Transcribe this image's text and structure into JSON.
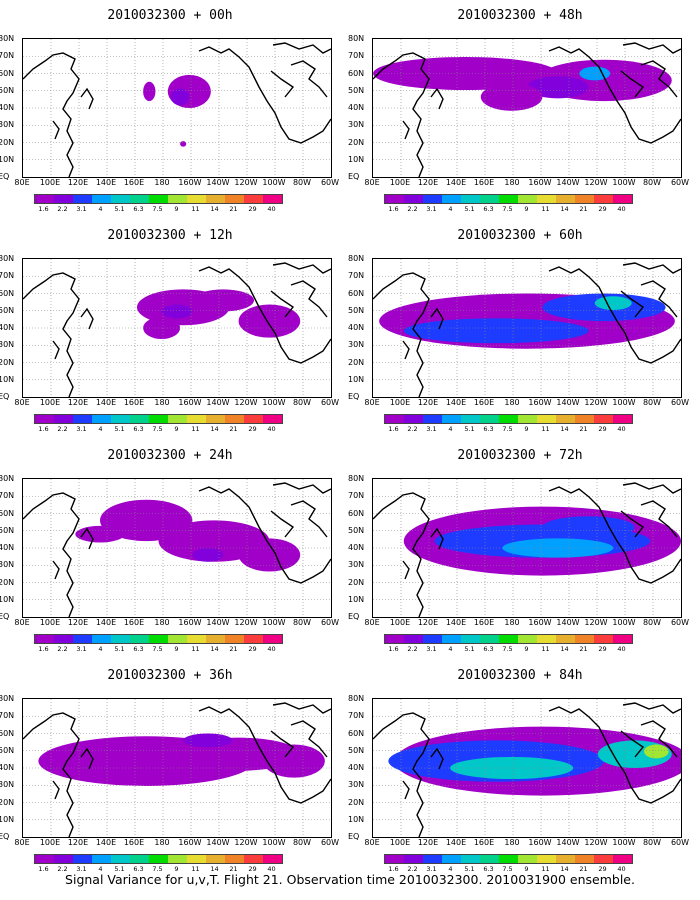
{
  "caption": "Signal Variance for u,v,T. Flight 21. Observation time 2010032300. 2010031900 ensemble.",
  "lat_labels": [
    "80N",
    "70N",
    "60N",
    "50N",
    "40N",
    "30N",
    "20N",
    "10N",
    "EQ"
  ],
  "lon_labels": [
    "80E",
    "100E",
    "120E",
    "140E",
    "160E",
    "180",
    "160W",
    "140W",
    "120W",
    "100W",
    "80W",
    "60W"
  ],
  "colorbar": {
    "levels": [
      "1.6",
      "2.2",
      "3.1",
      "4",
      "5.1",
      "6.3",
      "7.5",
      "9",
      "11",
      "14",
      "21",
      "29",
      "40"
    ],
    "colors": [
      "#a000c8",
      "#8200dc",
      "#1e3cff",
      "#00a0ff",
      "#00c8c8",
      "#00d28c",
      "#00dc00",
      "#a0e632",
      "#e6dc32",
      "#e6af2d",
      "#f08228",
      "#fa3c3c",
      "#f00082"
    ]
  },
  "panels": [
    {
      "title": "2010032300 + 00h",
      "lead_hours": 0
    },
    {
      "title": "2010032300 + 48h",
      "lead_hours": 48
    },
    {
      "title": "2010032300 + 12h",
      "lead_hours": 12
    },
    {
      "title": "2010032300 + 60h",
      "lead_hours": 60
    },
    {
      "title": "2010032300 + 24h",
      "lead_hours": 24
    },
    {
      "title": "2010032300 + 72h",
      "lead_hours": 72
    },
    {
      "title": "2010032300 + 36h",
      "lead_hours": 36
    },
    {
      "title": "2010032300 + 84h",
      "lead_hours": 84
    }
  ]
}
